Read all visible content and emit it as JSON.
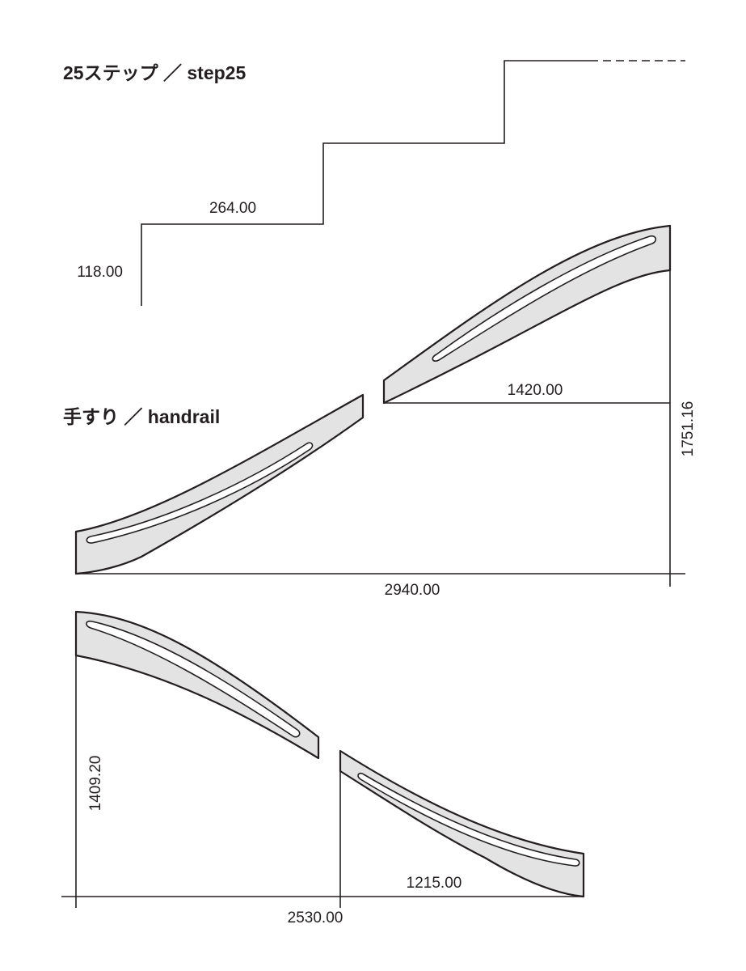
{
  "step_section": {
    "title": "25ステップ ／ step25",
    "riser_label": "118.00",
    "tread_label": "264.00"
  },
  "handrail_section": {
    "title": "手すり ／ handrail",
    "upper_rail": {
      "segment_run": "1420.00",
      "total_rise": "1751.16",
      "total_run": "2940.00"
    },
    "lower_rail": {
      "total_drop": "1409.20",
      "segment_run": "1215.00",
      "total_run": "2530.00"
    }
  },
  "colors": {
    "line": "#231f20",
    "rail_fill": "#e3e3e3",
    "background": "#ffffff"
  }
}
